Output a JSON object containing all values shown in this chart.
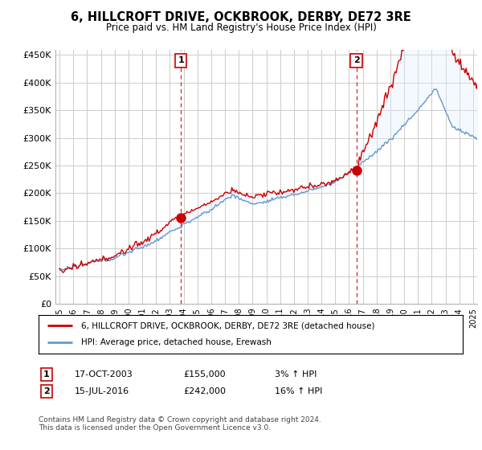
{
  "title": "6, HILLCROFT DRIVE, OCKBROOK, DERBY, DE72 3RE",
  "subtitle": "Price paid vs. HM Land Registry's House Price Index (HPI)",
  "ylabel_ticks": [
    "£0",
    "£50K",
    "£100K",
    "£150K",
    "£200K",
    "£250K",
    "£300K",
    "£350K",
    "£400K",
    "£450K"
  ],
  "ytick_values": [
    0,
    50000,
    100000,
    150000,
    200000,
    250000,
    300000,
    350000,
    400000,
    450000
  ],
  "ylim": [
    0,
    460000
  ],
  "xlim_start": 1994.7,
  "xlim_end": 2025.3,
  "transaction1": {
    "year": 2003.8,
    "price": 155000,
    "label": "1"
  },
  "transaction2": {
    "year": 2016.54,
    "price": 242000,
    "label": "2"
  },
  "legend_house": "6, HILLCROFT DRIVE, OCKBROOK, DERBY, DE72 3RE (detached house)",
  "legend_hpi": "HPI: Average price, detached house, Erewash",
  "table_row1": [
    "1",
    "17-OCT-2003",
    "£155,000",
    "3% ↑ HPI"
  ],
  "table_row2": [
    "2",
    "15-JUL-2016",
    "£242,000",
    "16% ↑ HPI"
  ],
  "footer": "Contains HM Land Registry data © Crown copyright and database right 2024.\nThis data is licensed under the Open Government Licence v3.0.",
  "color_house": "#cc0000",
  "color_hpi": "#6699cc",
  "color_fill": "#ddeeff",
  "color_vline": "#cc0000",
  "background_color": "#ffffff",
  "grid_color": "#cccccc"
}
